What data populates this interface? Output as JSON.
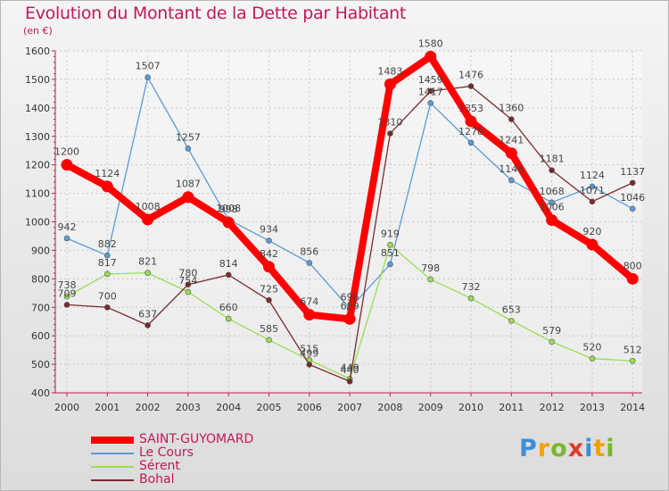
{
  "chart_data": {
    "type": "line",
    "title": "Evolution du Montant de la Dette par Habitant",
    "subtitle": "(en €)",
    "x": [
      "2000",
      "2001",
      "2002",
      "2003",
      "2004",
      "2005",
      "2006",
      "2007",
      "2008",
      "2009",
      "2010",
      "2011",
      "2012",
      "2013",
      "2014"
    ],
    "ylim": [
      400,
      1600
    ],
    "yticks": [
      400,
      500,
      600,
      700,
      800,
      900,
      1000,
      1100,
      1200,
      1300,
      1400,
      1500,
      1600
    ],
    "grid": true,
    "legend_position": "bottom-left",
    "series": [
      {
        "name": "SAINT-GUYOMARD",
        "color": "#ff0000",
        "emphasis": true,
        "values": [
          1200,
          1124,
          1008,
          1087,
          998,
          842,
          674,
          659,
          1483,
          1580,
          1353,
          1241,
          1006,
          920,
          800
        ]
      },
      {
        "name": "Le Cours",
        "color": "#5b9bd5",
        "emphasis": false,
        "values": [
          942,
          882,
          1507,
          1257,
          1008,
          934,
          856,
          696,
          851,
          1417,
          1278,
          1146,
          1068,
          1124,
          1046
        ]
      },
      {
        "name": "Sérent",
        "color": "#99dd55",
        "emphasis": false,
        "values": [
          738,
          817,
          821,
          754,
          660,
          585,
          515,
          449,
          919,
          798,
          732,
          653,
          579,
          520,
          512
        ]
      },
      {
        "name": "Bohal",
        "color": "#7a2a2a",
        "emphasis": false,
        "values": [
          709,
          700,
          637,
          780,
          814,
          725,
          499,
          440,
          1310,
          1459,
          1476,
          1360,
          1181,
          1071,
          1137
        ]
      }
    ]
  },
  "brand": {
    "letters": [
      "P",
      "r",
      "o",
      "x",
      "i",
      "t",
      "i"
    ],
    "colors": [
      "#3a8fd8",
      "#f4a000",
      "#79b72a",
      "#e23a2a",
      "#3a8fd8",
      "#f4a000",
      "#79b72a"
    ]
  }
}
